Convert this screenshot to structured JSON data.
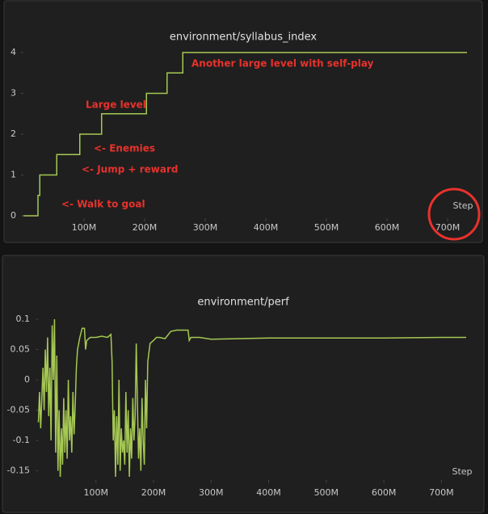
{
  "chart_data": [
    {
      "type": "line",
      "title": "environment/syllabus_index",
      "x_label": "Step",
      "color": "#a5c853",
      "x": [
        0,
        24000000.0,
        24000000.0,
        27000000.0,
        27000000.0,
        55000000.0,
        55000000.0,
        93000000.0,
        93000000.0,
        129000000.0,
        129000000.0,
        203000000.0,
        203000000.0,
        237000000.0,
        237000000.0,
        263000000.0,
        263000000.0,
        732000000.0
      ],
      "values": [
        0,
        0,
        0.5,
        0.5,
        1,
        1,
        1.5,
        1.5,
        2,
        2,
        2.5,
        2.5,
        3,
        3,
        3.5,
        3.5,
        4,
        4
      ],
      "xlim": [
        0,
        732000000.0
      ],
      "ylim": [
        0,
        4
      ],
      "xticks": [
        {
          "value": 100000000.0,
          "label": "100M"
        },
        {
          "value": 200000000.0,
          "label": "200M"
        },
        {
          "value": 300000000.0,
          "label": "300M"
        },
        {
          "value": 400000000.0,
          "label": "400M"
        },
        {
          "value": 500000000.0,
          "label": "500M"
        },
        {
          "value": 600000000.0,
          "label": "600M"
        },
        {
          "value": 700000000.0,
          "label": "700M"
        }
      ],
      "yticks": [
        0,
        1,
        2,
        3,
        4
      ],
      "annotation_color": "#e8322c",
      "annotations": [
        "Another large level with self-play",
        "Large level",
        "<- Enemies",
        "<- Jump + reward",
        "<- Walk to goal"
      ]
    },
    {
      "type": "line",
      "title": "environment/perf",
      "x_label": "Step",
      "color": "#a5c853",
      "x": [
        0,
        2000000.0,
        4000000.0,
        6000000.0,
        8000000.0,
        10000000.0,
        12000000.0,
        14000000.0,
        16000000.0,
        18000000.0,
        20000000.0,
        22000000.0,
        24000000.0,
        26000000.0,
        28000000.0,
        30000000.0,
        32000000.0,
        34000000.0,
        36000000.0,
        38000000.0,
        40000000.0,
        42000000.0,
        44000000.0,
        46000000.0,
        48000000.0,
        50000000.0,
        52000000.0,
        54000000.0,
        56000000.0,
        58000000.0,
        60000000.0,
        62000000.0,
        64000000.0,
        66000000.0,
        68000000.0,
        72000000.0,
        76000000.0,
        80000000.0,
        82000000.0,
        84000000.0,
        90000000.0,
        100000000.0,
        110000000.0,
        120000000.0,
        126000000.0,
        128000000.0,
        130000000.0,
        132000000.0,
        134000000.0,
        136000000.0,
        138000000.0,
        140000000.0,
        142000000.0,
        144000000.0,
        146000000.0,
        148000000.0,
        150000000.0,
        152000000.0,
        154000000.0,
        156000000.0,
        158000000.0,
        160000000.0,
        162000000.0,
        164000000.0,
        166000000.0,
        168000000.0,
        170000000.0,
        172000000.0,
        174000000.0,
        176000000.0,
        178000000.0,
        180000000.0,
        182000000.0,
        184000000.0,
        186000000.0,
        188000000.0,
        190000000.0,
        194000000.0,
        200000000.0,
        205000000.0,
        210000000.0,
        220000000.0,
        230000000.0,
        240000000.0,
        260000000.0,
        262000000.0,
        265000000.0,
        280000000.0,
        300000000.0,
        350000000.0,
        400000000.0,
        500000000.0,
        600000000.0,
        700000000.0,
        743000000.0
      ],
      "values": [
        -0.07,
        -0.02,
        -0.08,
        -0.03,
        0.02,
        -0.05,
        0.05,
        -0.02,
        0.07,
        -0.06,
        0.02,
        -0.1,
        0.09,
        0,
        0.1,
        -0.12,
        0.04,
        -0.15,
        -0.05,
        -0.16,
        -0.08,
        -0.14,
        -0.03,
        -0.12,
        -0.05,
        -0.13,
        0,
        -0.1,
        -0.06,
        -0.12,
        -0.02,
        -0.09,
        -0.04,
        0.02,
        0.05,
        0.07,
        0.085,
        0.085,
        0.05,
        0.065,
        0.07,
        0.07,
        0.072,
        0.07,
        0.075,
        0.03,
        -0.1,
        -0.05,
        -0.16,
        -0.06,
        -0.14,
        0,
        -0.15,
        -0.08,
        -0.12,
        -0.1,
        -0.14,
        -0.02,
        -0.12,
        -0.05,
        -0.16,
        -0.08,
        -0.13,
        -0.03,
        -0.1,
        -0.06,
        0.06,
        -0.04,
        -0.13,
        -0.08,
        -0.15,
        -0.03,
        -0.1,
        -0.14,
        0,
        -0.08,
        0.03,
        0.06,
        0.065,
        0.07,
        0.07,
        0.068,
        0.08,
        0.082,
        0.082,
        0.065,
        0.07,
        0.07,
        0.067,
        0.068,
        0.069,
        0.069,
        0.069,
        0.07,
        0.07
      ],
      "xlim": [
        0,
        743000000.0
      ],
      "ylim": [
        -0.165,
        0.105
      ],
      "xticks": [
        {
          "value": 100000000.0,
          "label": "100M"
        },
        {
          "value": 200000000.0,
          "label": "200M"
        },
        {
          "value": 300000000.0,
          "label": "300M"
        },
        {
          "value": 400000000.0,
          "label": "400M"
        },
        {
          "value": 500000000.0,
          "label": "500M"
        },
        {
          "value": 600000000.0,
          "label": "600M"
        },
        {
          "value": 700000000.0,
          "label": "700M"
        }
      ],
      "yticks": [
        -0.15,
        -0.1,
        -0.05,
        0,
        0.05,
        0.1
      ]
    }
  ]
}
